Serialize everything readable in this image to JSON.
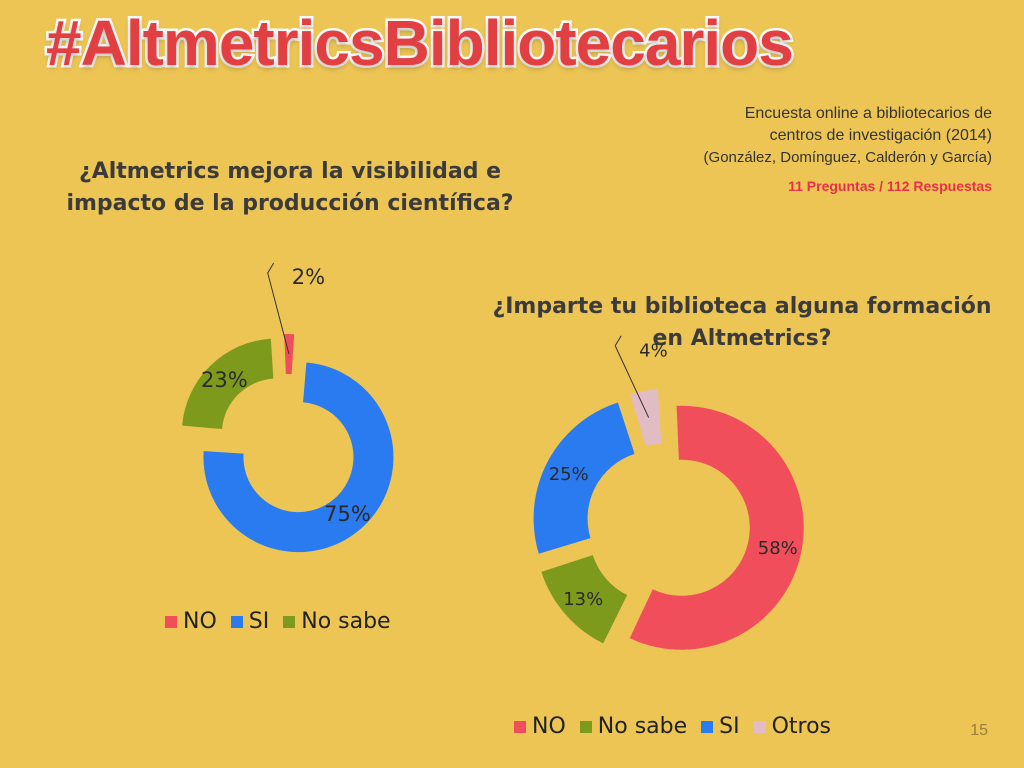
{
  "title": "#AltmetricsBibliotecarios",
  "survey": {
    "line1": "Encuesta online a bibliotecarios de",
    "line2": "centros de investigación (2014)",
    "authors": "(González, Domínguez, Calderón y García)",
    "counts": "11 Preguntas / 112 Respuestas"
  },
  "page_number": "15",
  "colors": {
    "NO": "#F04E5A",
    "SI": "#2B7BF0",
    "No sabe": "#7E9A1D",
    "Otros": "#E2BCC4"
  },
  "chart_data": [
    {
      "type": "pie",
      "variant": "donut-exploded",
      "title": "¿Altmetrics mejora la visibilidad e impacto de la producción científica?",
      "categories": [
        "NO",
        "SI",
        "No sabe"
      ],
      "values": [
        2,
        75,
        23
      ],
      "labels": [
        "2%",
        "75%",
        "23%"
      ],
      "legend": [
        "NO",
        "SI",
        "No sabe"
      ],
      "legend_position": "bottom"
    },
    {
      "type": "pie",
      "variant": "donut-exploded",
      "title": "¿Imparte tu biblioteca alguna formación en Altmetrics?",
      "categories": [
        "NO",
        "No sabe",
        "SI",
        "Otros"
      ],
      "values": [
        58,
        13,
        25,
        4
      ],
      "labels": [
        "58%",
        "13%",
        "25%",
        "4%"
      ],
      "legend": [
        "NO",
        "No sabe",
        "SI",
        "Otros"
      ],
      "legend_position": "bottom"
    }
  ]
}
